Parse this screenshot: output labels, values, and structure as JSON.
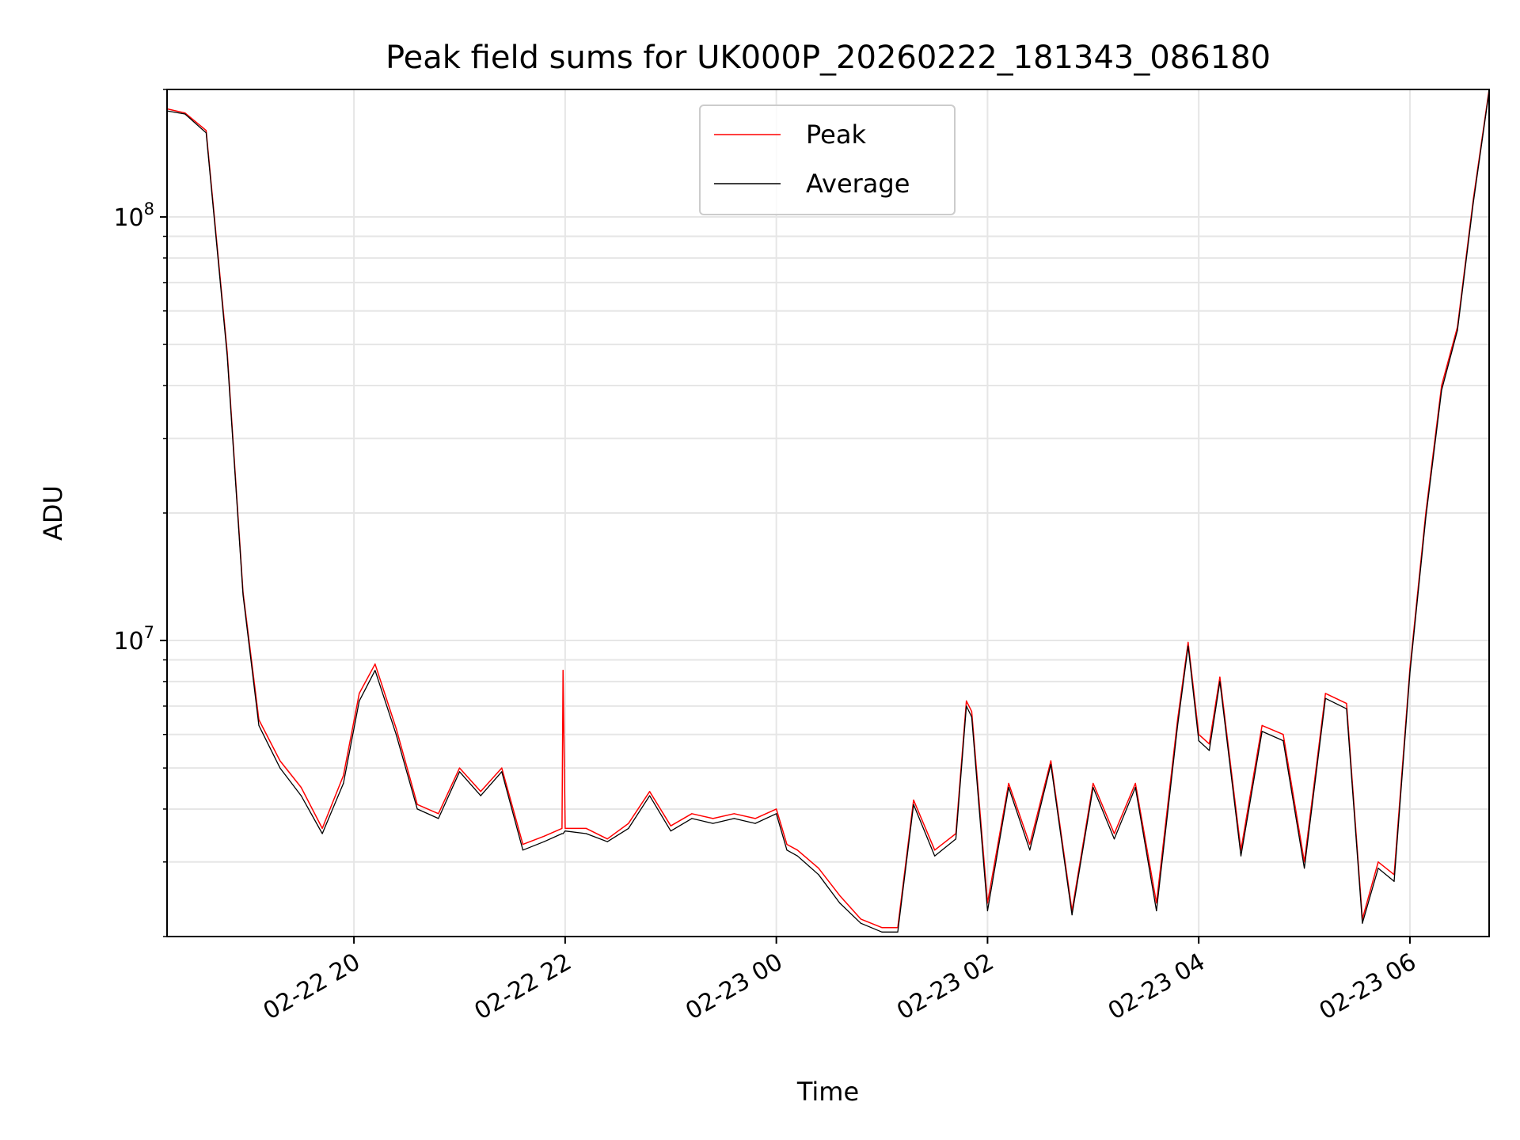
{
  "chart_data": {
    "type": "line",
    "title": "Peak field sums for UK000P_20260222_181343_086180",
    "xlabel": "Time",
    "ylabel": "ADU",
    "yscale": "log",
    "ylim": [
      2000000,
      200000000
    ],
    "xlim_hours": [
      18.23,
      30.75
    ],
    "x_unit": "hours since 2026-02-22 00:00",
    "grid": true,
    "legend_position": "top-center",
    "x_ticks": [
      {
        "value": 20,
        "label": "02-22 20"
      },
      {
        "value": 22,
        "label": "02-22 22"
      },
      {
        "value": 24,
        "label": "02-23 00"
      },
      {
        "value": 26,
        "label": "02-23 02"
      },
      {
        "value": 28,
        "label": "02-23 04"
      },
      {
        "value": 30,
        "label": "02-23 06"
      }
    ],
    "y_major_ticks": [
      {
        "value": 10000000,
        "base": "10",
        "exp": "7"
      },
      {
        "value": 100000000,
        "base": "10",
        "exp": "8"
      }
    ],
    "y_minor_ticks": [
      2000000,
      3000000,
      4000000,
      5000000,
      6000000,
      7000000,
      8000000,
      9000000,
      20000000,
      30000000,
      40000000,
      50000000,
      60000000,
      70000000,
      80000000,
      90000000,
      200000000
    ],
    "series": [
      {
        "name": "Peak",
        "color": "#ff0000",
        "x": [
          18.23,
          18.4,
          18.6,
          18.8,
          18.95,
          19.1,
          19.3,
          19.5,
          19.7,
          19.9,
          20.05,
          20.2,
          20.4,
          20.6,
          20.8,
          21.0,
          21.2,
          21.4,
          21.6,
          21.8,
          21.97,
          21.98,
          22.0,
          22.2,
          22.4,
          22.6,
          22.8,
          23.0,
          23.2,
          23.4,
          23.6,
          23.8,
          24.0,
          24.1,
          24.2,
          24.4,
          24.6,
          24.8,
          25.0,
          25.15,
          25.3,
          25.5,
          25.7,
          25.8,
          25.85,
          26.0,
          26.2,
          26.4,
          26.6,
          26.8,
          27.0,
          27.2,
          27.4,
          27.6,
          27.8,
          27.9,
          28.0,
          28.1,
          28.2,
          28.4,
          28.6,
          28.8,
          29.0,
          29.2,
          29.4,
          29.55,
          29.7,
          29.85,
          30.0,
          30.15,
          30.3,
          30.45,
          30.6,
          30.75
        ],
        "values": [
          180000000,
          176000000,
          160000000,
          48000000,
          13000000,
          6500000,
          5200000,
          4500000,
          3600000,
          4800000,
          7500000,
          8800000,
          6200000,
          4100000,
          3900000,
          5000000,
          4400000,
          5000000,
          3300000,
          3450000,
          3600000,
          8500000,
          3600000,
          3600000,
          3400000,
          3700000,
          4400000,
          3650000,
          3900000,
          3800000,
          3900000,
          3800000,
          4000000,
          3300000,
          3200000,
          2900000,
          2500000,
          2200000,
          2100000,
          2100000,
          4200000,
          3200000,
          3500000,
          7200000,
          6800000,
          2400000,
          4600000,
          3300000,
          5200000,
          2300000,
          4600000,
          3500000,
          4600000,
          2400000,
          6500000,
          9900000,
          6000000,
          5700000,
          8200000,
          3200000,
          6300000,
          6000000,
          3000000,
          7500000,
          7100000,
          2200000,
          3000000,
          2800000,
          8600000,
          20000000,
          40000000,
          55000000,
          110000000,
          200000000
        ]
      },
      {
        "name": "Average",
        "color": "#000000",
        "x": [
          18.23,
          18.4,
          18.6,
          18.8,
          18.95,
          19.1,
          19.3,
          19.5,
          19.7,
          19.9,
          20.05,
          20.2,
          20.4,
          20.6,
          20.8,
          21.0,
          21.2,
          21.4,
          21.6,
          21.8,
          21.97,
          21.98,
          22.0,
          22.2,
          22.4,
          22.6,
          22.8,
          23.0,
          23.2,
          23.4,
          23.6,
          23.8,
          24.0,
          24.1,
          24.2,
          24.4,
          24.6,
          24.8,
          25.0,
          25.15,
          25.3,
          25.5,
          25.7,
          25.8,
          25.85,
          26.0,
          26.2,
          26.4,
          26.6,
          26.8,
          27.0,
          27.2,
          27.4,
          27.6,
          27.8,
          27.9,
          28.0,
          28.1,
          28.2,
          28.4,
          28.6,
          28.8,
          29.0,
          29.2,
          29.4,
          29.55,
          29.7,
          29.85,
          30.0,
          30.15,
          30.3,
          30.45,
          30.6,
          30.75
        ],
        "values": [
          178000000,
          175000000,
          158000000,
          47000000,
          12800000,
          6300000,
          5000000,
          4300000,
          3500000,
          4600000,
          7200000,
          8500000,
          6000000,
          4000000,
          3800000,
          4900000,
          4300000,
          4900000,
          3200000,
          3350000,
          3500000,
          3500000,
          3550000,
          3500000,
          3350000,
          3600000,
          4300000,
          3550000,
          3800000,
          3700000,
          3800000,
          3700000,
          3900000,
          3200000,
          3100000,
          2800000,
          2400000,
          2150000,
          2050000,
          2050000,
          4100000,
          3100000,
          3400000,
          7000000,
          6600000,
          2300000,
          4500000,
          3200000,
          5100000,
          2250000,
          4500000,
          3400000,
          4500000,
          2300000,
          6300000,
          9700000,
          5800000,
          5500000,
          8000000,
          3100000,
          6100000,
          5800000,
          2900000,
          7300000,
          6900000,
          2150000,
          2900000,
          2700000,
          8400000,
          19500000,
          39000000,
          54000000,
          108000000,
          198000000
        ]
      }
    ]
  }
}
